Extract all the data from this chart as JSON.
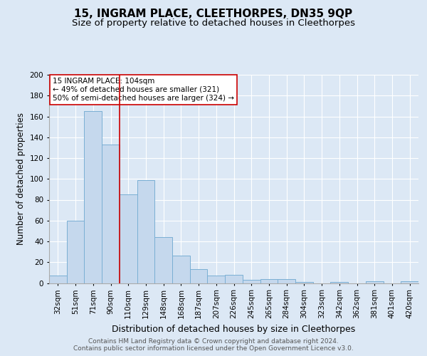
{
  "title": "15, INGRAM PLACE, CLEETHORPES, DN35 9QP",
  "subtitle": "Size of property relative to detached houses in Cleethorpes",
  "xlabel": "Distribution of detached houses by size in Cleethorpes",
  "ylabel": "Number of detached properties",
  "categories": [
    "32sqm",
    "51sqm",
    "71sqm",
    "90sqm",
    "110sqm",
    "129sqm",
    "148sqm",
    "168sqm",
    "187sqm",
    "207sqm",
    "226sqm",
    "245sqm",
    "265sqm",
    "284sqm",
    "304sqm",
    "323sqm",
    "342sqm",
    "362sqm",
    "381sqm",
    "401sqm",
    "420sqm"
  ],
  "values": [
    7,
    60,
    165,
    133,
    85,
    99,
    44,
    26,
    13,
    7,
    8,
    3,
    4,
    4,
    1,
    0,
    1,
    0,
    2,
    0,
    2
  ],
  "bar_color": "#c5d8ed",
  "bar_edge_color": "#7aafd4",
  "vline_color": "#cc0000",
  "vline_x": 3.5,
  "ylim": [
    0,
    200
  ],
  "yticks": [
    0,
    20,
    40,
    60,
    80,
    100,
    120,
    140,
    160,
    180,
    200
  ],
  "annotation_line1": "15 INGRAM PLACE: 104sqm",
  "annotation_line2": "← 49% of detached houses are smaller (321)",
  "annotation_line3": "50% of semi-detached houses are larger (324) →",
  "annotation_box_color": "#ffffff",
  "annotation_box_edge": "#cc0000",
  "bg_color": "#dce8f5",
  "plot_bg_color": "#dce8f5",
  "footer_text": "Contains HM Land Registry data © Crown copyright and database right 2024.\nContains public sector information licensed under the Open Government Licence v3.0.",
  "title_fontsize": 11,
  "subtitle_fontsize": 9.5,
  "xlabel_fontsize": 9,
  "ylabel_fontsize": 8.5,
  "tick_fontsize": 7.5,
  "annotation_fontsize": 7.5,
  "footer_fontsize": 6.5
}
